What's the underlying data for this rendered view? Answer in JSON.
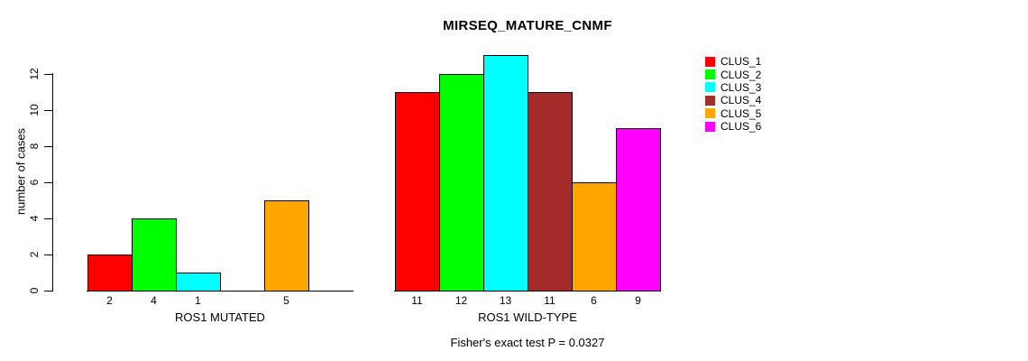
{
  "chart_data": {
    "type": "bar",
    "title": "MIRSEQ_MATURE_CNMF",
    "ylabel": "number of cases",
    "ylim": [
      0,
      12
    ],
    "yticks": [
      0,
      2,
      4,
      6,
      8,
      10,
      12
    ],
    "grid": false,
    "legend_position": "right",
    "categories": [
      "CLUS_1",
      "CLUS_2",
      "CLUS_3",
      "CLUS_4",
      "CLUS_5",
      "CLUS_6"
    ],
    "colors": [
      "#ff0000",
      "#00ff00",
      "#00ffff",
      "#a52a2a",
      "#ffa500",
      "#ff00ff"
    ],
    "groups": [
      {
        "label": "ROS1 MUTATED",
        "values": [
          2,
          4,
          1,
          0,
          5,
          0
        ],
        "bar_labels": [
          "2",
          "4",
          "1",
          "",
          "5",
          ""
        ]
      },
      {
        "label": "ROS1 WILD-TYPE",
        "values": [
          11,
          12,
          13,
          11,
          6,
          9
        ],
        "bar_labels": [
          "11",
          "12",
          "13",
          "11",
          "6",
          "9"
        ]
      }
    ],
    "footnote": "Fisher's exact test P = 0.0327"
  }
}
